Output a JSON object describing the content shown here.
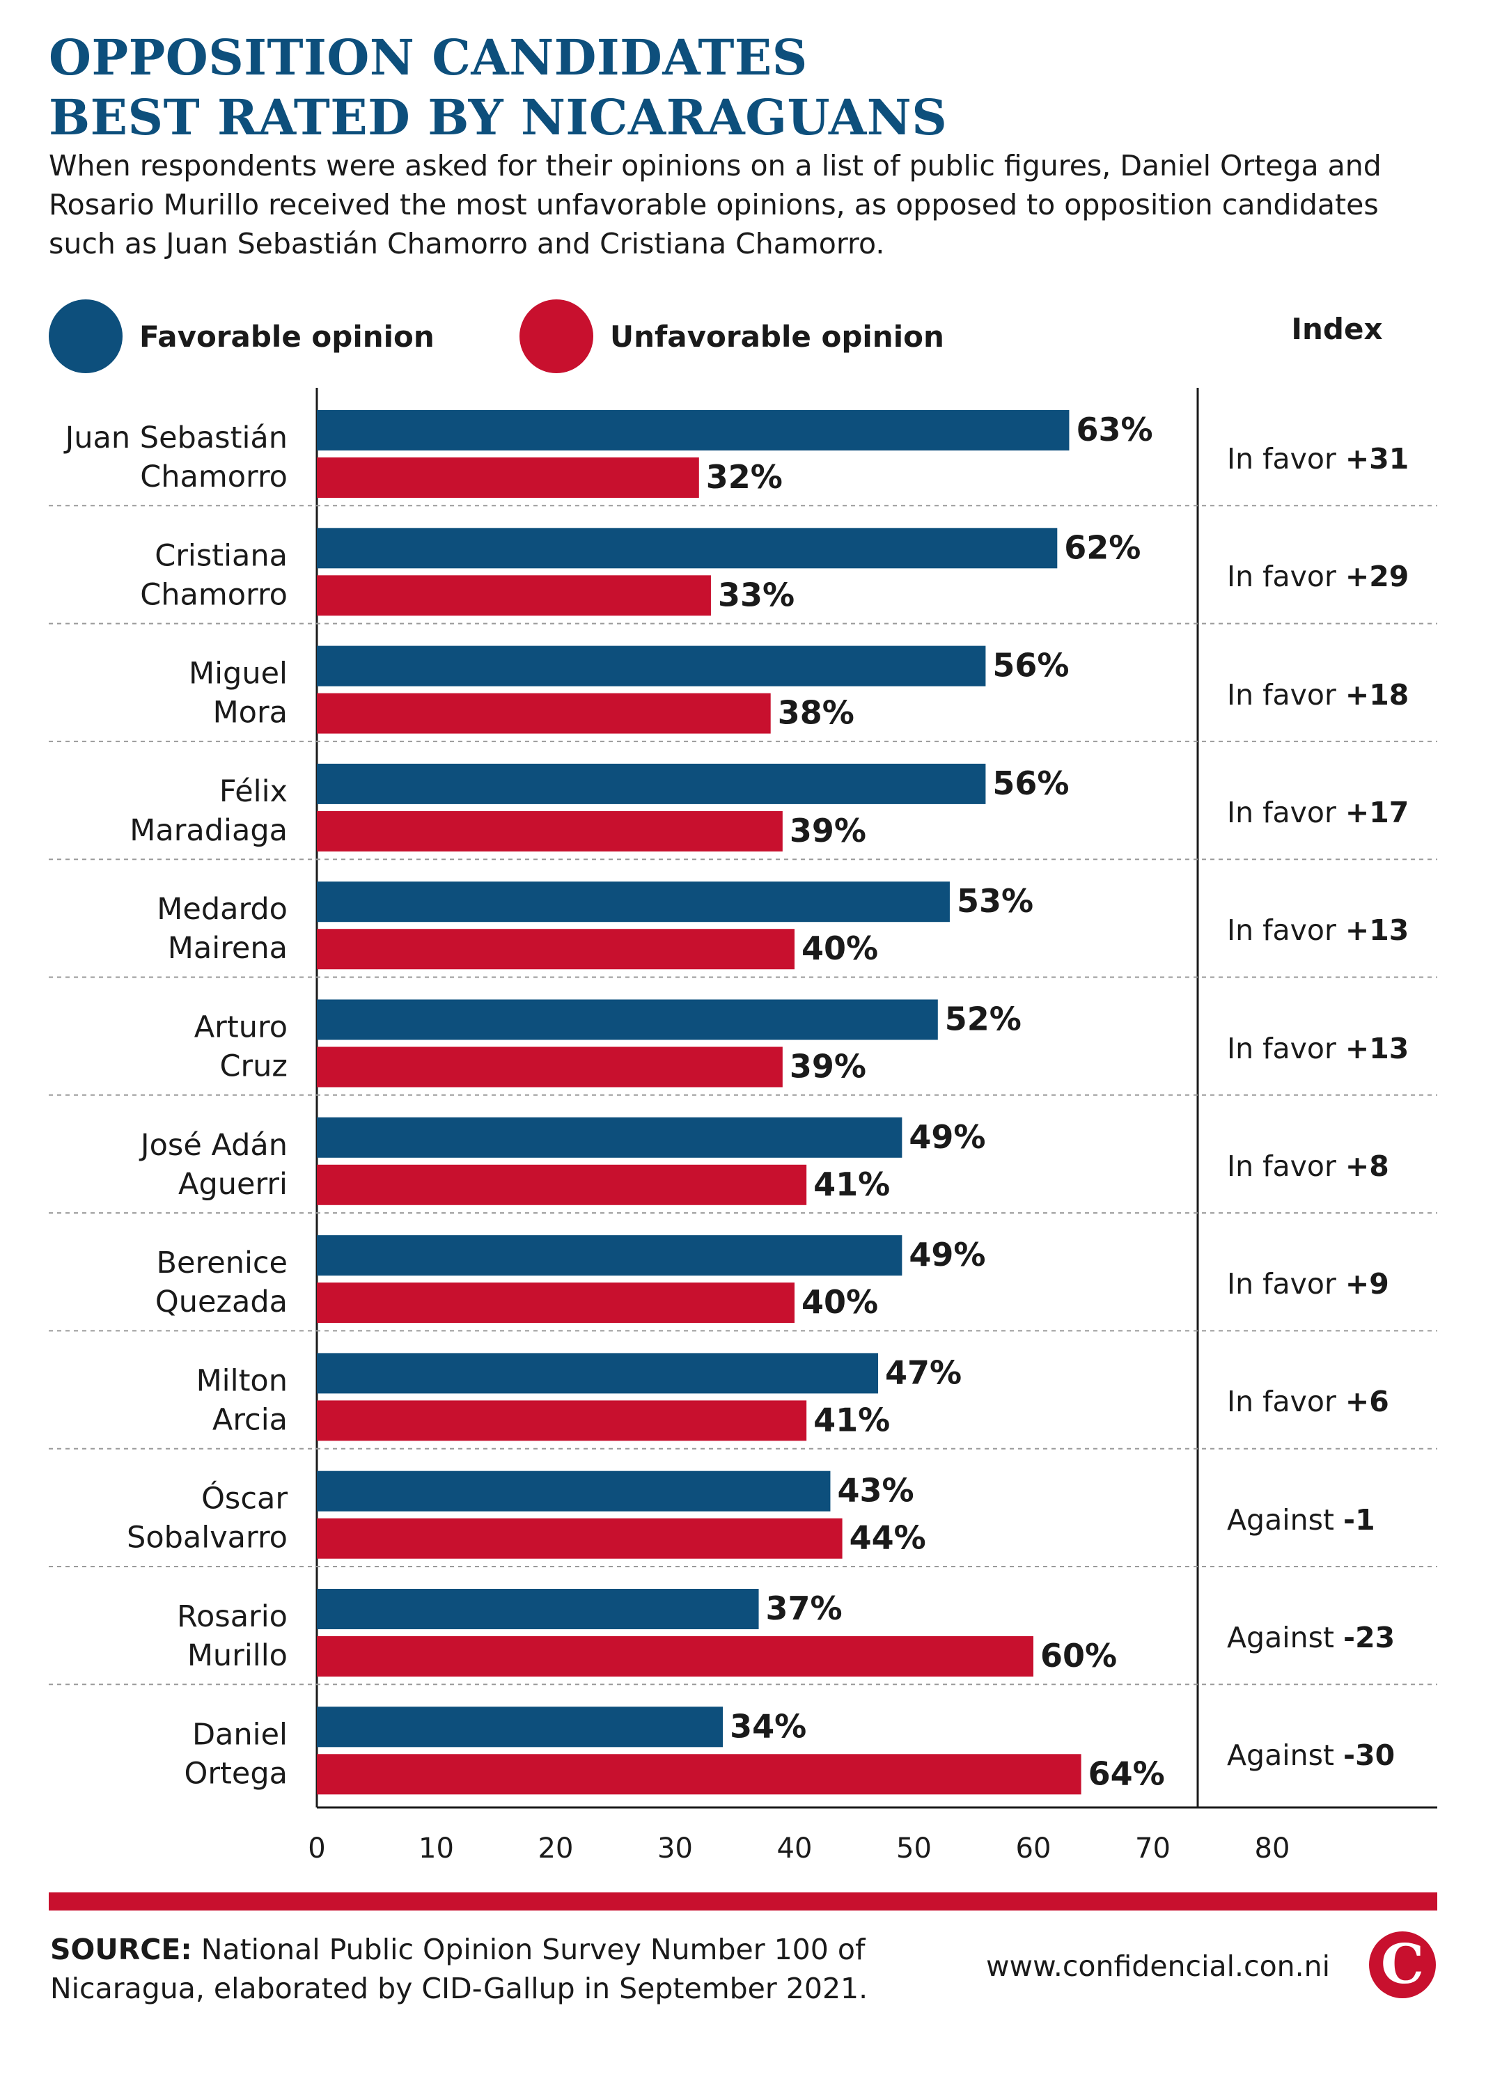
{
  "title_lines": [
    "OPPOSITION CANDIDATES",
    "BEST RATED BY NICARAGUANS"
  ],
  "subtitle": "When respondents were asked for their opinions on a list of public figures, Daniel Ortega and Rosario Murillo received the most unfavorable opinions, as opposed to opposition candidates such as Juan Sebastián Chamorro and Cristiana Chamorro.",
  "legend": {
    "favorable": "Favorable opinion",
    "unfavorable": "Unfavorable opinion"
  },
  "index_header": "Index",
  "colors": {
    "favorable": "#0d4f7c",
    "unfavorable": "#c8102e",
    "title": "#0d4f7c"
  },
  "chart_data": {
    "type": "bar",
    "orientation": "horizontal",
    "categories": [
      [
        "Juan Sebastián",
        "Chamorro"
      ],
      [
        "Cristiana",
        "Chamorro"
      ],
      [
        "Miguel",
        "Mora"
      ],
      [
        "Félix",
        "Maradiaga"
      ],
      [
        "Medardo",
        "Mairena"
      ],
      [
        "Arturo",
        "Cruz"
      ],
      [
        "José Adán",
        "Aguerri"
      ],
      [
        "Berenice",
        "Quezada"
      ],
      [
        "Milton",
        "Arcia"
      ],
      [
        "Óscar",
        "Sobalvarro"
      ],
      [
        "Rosario",
        "Murillo"
      ],
      [
        "Daniel",
        "Ortega"
      ]
    ],
    "series": [
      {
        "name": "Favorable opinion",
        "values": [
          63,
          62,
          56,
          56,
          53,
          52,
          49,
          49,
          47,
          43,
          37,
          34
        ]
      },
      {
        "name": "Unfavorable opinion",
        "values": [
          32,
          33,
          38,
          39,
          40,
          39,
          41,
          40,
          41,
          44,
          60,
          64
        ]
      }
    ],
    "index": [
      {
        "label": "In favor",
        "value": "+31"
      },
      {
        "label": "In favor",
        "value": "+29"
      },
      {
        "label": "In favor",
        "value": "+18"
      },
      {
        "label": "In favor",
        "value": "+17"
      },
      {
        "label": "In favor",
        "value": "+13"
      },
      {
        "label": "In favor",
        "value": "+13"
      },
      {
        "label": "In favor",
        "value": "+8"
      },
      {
        "label": "In favor",
        "value": "+9"
      },
      {
        "label": "In favor",
        "value": "+6"
      },
      {
        "label": "Against",
        "value": "-1"
      },
      {
        "label": "Against",
        "value": "-23"
      },
      {
        "label": "Against",
        "value": "-30"
      }
    ],
    "value_suffix": "%",
    "xticks": [
      0,
      10,
      20,
      30,
      40,
      50,
      60,
      70,
      80
    ],
    "xlim": [
      0,
      94
    ],
    "grid": "dashed separators between rows",
    "legend_position": "top-left"
  },
  "source": {
    "label": "SOURCE:",
    "text": "National Public Opinion Survey Number 100 of Nicaragua, elaborated by CID-Gallup in September 2021."
  },
  "website": "www.confidencial.con.ni",
  "logo_letter": "C"
}
